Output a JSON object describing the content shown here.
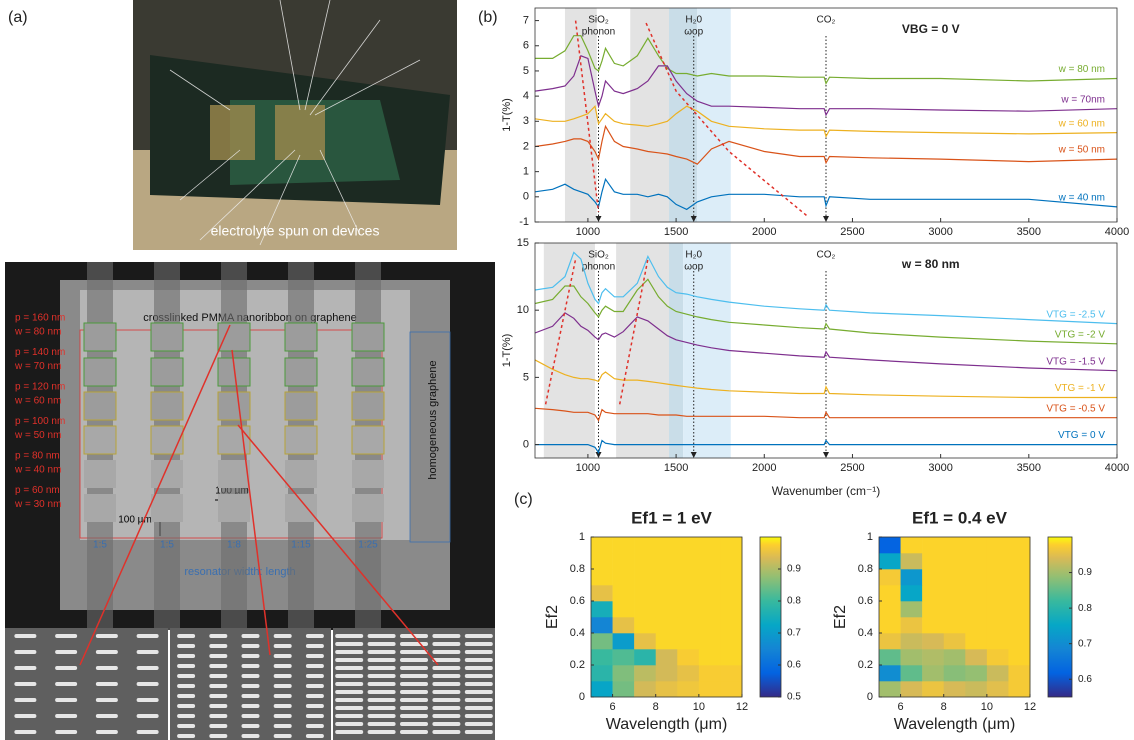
{
  "panels": {
    "a": "(a)",
    "b": "(b)",
    "c": "(c)"
  },
  "photo": {
    "caption": "electrolyte spun on devices"
  },
  "micrograph": {
    "title": "crosslinked PMMA nanoribbon on graphene",
    "labels": [
      [
        "p = 160 nm",
        "w = 80 nm"
      ],
      [
        "p = 140 nm",
        "w = 70 nm"
      ],
      [
        "p = 120 nm",
        "w = 60 nm"
      ],
      [
        "p = 100 nm",
        "w = 50 nm"
      ],
      [
        "p = 80 nm",
        "w = 40 nm"
      ],
      [
        "p = 60 nm",
        "w = 30 nm"
      ]
    ],
    "ratios": [
      "1:5",
      "1:5",
      "1:8",
      "1:15",
      "1:25"
    ],
    "ratio_caption": "resonator width: length",
    "side_label": "homogeneous graphene",
    "scale_h": "100 µm",
    "scale_v": "100 µm"
  },
  "chart_data": [
    {
      "type": "line",
      "ylabel": "1-T(%)",
      "note": "VBG = 0 V",
      "x": [
        700,
        800,
        870,
        920,
        960,
        1000,
        1040,
        1060,
        1080,
        1100,
        1150,
        1200,
        1280,
        1340,
        1400,
        1450,
        1500,
        1560,
        1620,
        1700,
        1800,
        2000,
        2200,
        2340,
        2350,
        2370,
        2600,
        3000,
        3500,
        4000
      ],
      "xlim": [
        700,
        4000
      ],
      "xticks": [
        1000,
        1500,
        2000,
        2500,
        3000,
        3500,
        4000
      ],
      "ylim": [
        -1,
        7.5
      ],
      "yticks": [
        -1,
        0,
        1,
        2,
        3,
        4,
        5,
        6,
        7
      ],
      "bands": [
        {
          "from": 870,
          "to": 1050,
          "color": "#e3e3e3"
        },
        {
          "from": 1240,
          "to": 1460,
          "color": "#e3e3e3"
        },
        {
          "from": 1460,
          "to": 1620,
          "color": "#c9dde8"
        },
        {
          "from": 1620,
          "to": 1810,
          "color": "#dcedf8"
        }
      ],
      "annotations": [
        {
          "x": 1060,
          "text": [
            "SiO₂",
            "phonon"
          ]
        },
        {
          "x": 1600,
          "text": [
            "H₂0",
            "ωop"
          ]
        },
        {
          "x": 2350,
          "text": [
            "CO₂"
          ]
        }
      ],
      "trends": [
        {
          "x": [
            930,
            1060
          ],
          "y": [
            7.0,
            -0.6
          ]
        },
        {
          "x": [
            1330,
            1500,
            1800,
            2250
          ],
          "y": [
            6.9,
            4.2,
            1.8,
            -0.8
          ]
        }
      ],
      "series": [
        {
          "name": "w = 80 nm",
          "color": "#77ac30",
          "values": [
            5.5,
            5.5,
            5.8,
            6.4,
            6.4,
            5.8,
            5.1,
            5.0,
            5.4,
            5.9,
            5.3,
            5.2,
            5.6,
            6.3,
            5.6,
            5.1,
            4.9,
            4.9,
            4.8,
            4.9,
            4.8,
            4.8,
            4.75,
            4.75,
            4.5,
            4.75,
            4.7,
            4.7,
            4.6,
            4.7
          ]
        },
        {
          "name": "w = 70nm",
          "color": "#7e2f8e",
          "values": [
            4.2,
            4.3,
            4.4,
            4.8,
            5.6,
            5.5,
            4.2,
            3.6,
            4.0,
            4.6,
            4.2,
            4.1,
            4.3,
            4.6,
            5.2,
            5.2,
            4.6,
            4.1,
            3.8,
            3.6,
            3.6,
            3.55,
            3.5,
            3.5,
            3.25,
            3.5,
            3.5,
            3.45,
            3.4,
            3.5
          ]
        },
        {
          "name": "w = 60 nm",
          "color": "#edb120",
          "values": [
            3.1,
            3.0,
            3.0,
            3.1,
            3.2,
            3.3,
            3.6,
            2.9,
            3.1,
            3.3,
            3.0,
            2.9,
            2.85,
            2.8,
            2.9,
            3.0,
            3.3,
            3.6,
            3.4,
            3.0,
            2.8,
            2.7,
            2.65,
            2.65,
            2.4,
            2.65,
            2.6,
            2.55,
            2.5,
            2.55
          ]
        },
        {
          "name": "w = 50 nm",
          "color": "#d95319",
          "values": [
            2.0,
            2.1,
            2.2,
            2.3,
            2.3,
            2.2,
            1.8,
            1.5,
            2.2,
            2.8,
            2.2,
            2.0,
            1.9,
            1.8,
            1.75,
            1.7,
            1.6,
            1.5,
            1.3,
            1.9,
            2.2,
            1.8,
            1.6,
            1.6,
            1.35,
            1.6,
            1.55,
            1.5,
            1.4,
            1.5
          ]
        },
        {
          "name": "w = 40 nm",
          "color": "#0072bd",
          "values": [
            0.2,
            0.3,
            0.5,
            0.3,
            0.2,
            0.1,
            -0.2,
            -0.4,
            0.2,
            0.7,
            0.2,
            0.1,
            0.1,
            0.0,
            0.1,
            0.0,
            -0.3,
            -0.5,
            -0.2,
            0.0,
            0.1,
            0.1,
            0.0,
            0.0,
            -0.35,
            0.0,
            -0.1,
            -0.1,
            -0.1,
            -0.4
          ]
        }
      ]
    },
    {
      "type": "line",
      "ylabel": "1-T(%)",
      "xlabel": "Wavenumber (cm⁻¹)",
      "note": "w = 80 nm",
      "x": [
        700,
        800,
        870,
        920,
        960,
        1000,
        1040,
        1060,
        1080,
        1100,
        1150,
        1200,
        1280,
        1340,
        1400,
        1450,
        1500,
        1560,
        1620,
        1700,
        1800,
        2000,
        2200,
        2340,
        2350,
        2370,
        2600,
        3000,
        3500,
        4000
      ],
      "xlim": [
        700,
        4000
      ],
      "xticks": [
        1000,
        1500,
        2000,
        2500,
        3000,
        3500,
        4000
      ],
      "ylim": [
        -1,
        15
      ],
      "yticks": [
        0,
        5,
        10,
        15
      ],
      "bands": [
        {
          "from": 750,
          "to": 1040,
          "color": "#e3e3e3"
        },
        {
          "from": 1160,
          "to": 1460,
          "color": "#e3e3e3"
        },
        {
          "from": 1460,
          "to": 1540,
          "color": "#c9dde8"
        },
        {
          "from": 1540,
          "to": 1810,
          "color": "#dcedf8"
        }
      ],
      "annotations": [
        {
          "x": 1060,
          "text": [
            "SiO₂",
            "phonon"
          ]
        },
        {
          "x": 1600,
          "text": [
            "H₂0",
            "ωop"
          ]
        },
        {
          "x": 2350,
          "text": [
            "CO₂"
          ]
        }
      ],
      "trends": [
        {
          "x": [
            760,
            930
          ],
          "y": [
            3.0,
            13.8
          ]
        },
        {
          "x": [
            1180,
            1340
          ],
          "y": [
            3.0,
            13.8
          ]
        }
      ],
      "series": [
        {
          "name": "VTG = -2.5 V",
          "color": "#4dbeee",
          "values": [
            11.5,
            11.7,
            12.5,
            14.3,
            13.8,
            12.0,
            10.8,
            10.5,
            11.3,
            11.6,
            11.0,
            11.0,
            12.0,
            14.0,
            12.5,
            11.7,
            11.3,
            11.2,
            11.0,
            10.8,
            10.6,
            10.3,
            10.1,
            10.0,
            10.4,
            10.0,
            9.8,
            9.6,
            9.3,
            9.0
          ]
        },
        {
          "name": "VTG = -2 V",
          "color": "#77ac30",
          "values": [
            10.5,
            10.8,
            11.8,
            11.8,
            11.0,
            10.5,
            9.8,
            9.5,
            10.0,
            10.3,
            9.9,
            9.9,
            11.5,
            12.3,
            11.0,
            10.3,
            9.9,
            9.7,
            9.5,
            9.3,
            9.1,
            8.9,
            8.7,
            8.6,
            9.0,
            8.6,
            8.3,
            8.0,
            7.7,
            7.5
          ]
        },
        {
          "name": "VTG = -1.5 V",
          "color": "#7e2f8e",
          "values": [
            8.3,
            8.8,
            9.8,
            9.4,
            8.8,
            8.5,
            8.0,
            7.8,
            8.2,
            8.3,
            8.0,
            8.4,
            9.5,
            9.2,
            8.6,
            8.1,
            7.8,
            7.6,
            7.4,
            7.2,
            7.0,
            6.8,
            6.6,
            6.5,
            6.9,
            6.5,
            6.3,
            6.0,
            5.7,
            5.5
          ]
        },
        {
          "name": "VTG = -1 V",
          "color": "#edb120",
          "values": [
            6.3,
            5.6,
            5.2,
            5.0,
            4.9,
            4.9,
            4.8,
            4.7,
            5.2,
            5.4,
            4.9,
            4.8,
            4.8,
            4.7,
            4.6,
            4.5,
            4.4,
            4.3,
            4.2,
            4.1,
            4.0,
            3.9,
            3.8,
            3.8,
            4.3,
            3.8,
            3.7,
            3.6,
            3.5,
            3.5
          ]
        },
        {
          "name": "VTG = -0.5 V",
          "color": "#d95319",
          "values": [
            2.7,
            2.6,
            2.5,
            2.4,
            2.4,
            2.4,
            2.2,
            1.8,
            2.6,
            2.4,
            2.3,
            2.3,
            2.3,
            2.3,
            2.2,
            2.2,
            2.2,
            2.1,
            2.1,
            2.1,
            2.1,
            2.1,
            2.0,
            2.0,
            2.4,
            2.0,
            2.0,
            2.0,
            2.0,
            2.0
          ]
        },
        {
          "name": "VTG = 0 V",
          "color": "#0072bd",
          "values": [
            0,
            0,
            0,
            0,
            0,
            0,
            -0.2,
            -0.6,
            0.3,
            0.1,
            0,
            0,
            0,
            0,
            0,
            0,
            0,
            0,
            0,
            0,
            0,
            0,
            0,
            0,
            0.3,
            0,
            0,
            0,
            0,
            0
          ]
        }
      ]
    },
    {
      "type": "heatmap",
      "title": "Ef1 = 1 eV",
      "xlabel": "Wavelength (μm)",
      "ylabel": "Ef2",
      "colormap": "parula",
      "x": [
        5,
        6,
        7,
        8,
        9,
        10,
        11,
        12
      ],
      "y": [
        0,
        0.1,
        0.2,
        0.3,
        0.4,
        0.5,
        0.6,
        0.7,
        0.8,
        0.9,
        1
      ],
      "xlim": [
        5,
        12
      ],
      "xticks": [
        6,
        8,
        10,
        12
      ],
      "ylim": [
        0,
        1
      ],
      "yticks": [
        0,
        0.2,
        0.4,
        0.6,
        0.8,
        1
      ],
      "zlim": [
        0.5,
        1
      ],
      "zticks": [
        0.5,
        0.6,
        0.7,
        0.8,
        0.9
      ],
      "z": [
        [
          0.72,
          0.85,
          0.93,
          0.95,
          0.96,
          0.97,
          0.97
        ],
        [
          0.78,
          0.86,
          0.91,
          0.93,
          0.95,
          0.97,
          0.97
        ],
        [
          0.8,
          0.82,
          0.78,
          0.93,
          0.97,
          0.98,
          0.98
        ],
        [
          0.85,
          0.7,
          0.95,
          0.98,
          0.98,
          0.98,
          0.98
        ],
        [
          0.65,
          0.95,
          0.98,
          0.98,
          0.98,
          0.98,
          0.98
        ],
        [
          0.75,
          0.98,
          0.98,
          0.98,
          0.98,
          0.98,
          0.98
        ],
        [
          0.95,
          0.98,
          0.98,
          0.98,
          0.98,
          0.98,
          0.98
        ],
        [
          0.98,
          0.98,
          0.98,
          0.98,
          0.98,
          0.98,
          0.98
        ],
        [
          0.98,
          0.98,
          0.98,
          0.98,
          0.98,
          0.98,
          0.98
        ],
        [
          0.98,
          0.98,
          0.98,
          0.98,
          0.98,
          0.98,
          0.98
        ]
      ]
    },
    {
      "type": "heatmap",
      "title": "Ef1 = 0.4 eV",
      "xlabel": "Wavelength (μm)",
      "ylabel": "Ef2",
      "colormap": "parula",
      "x": [
        5,
        6,
        7,
        8,
        9,
        10,
        11,
        12
      ],
      "y": [
        0,
        0.1,
        0.2,
        0.3,
        0.4,
        0.5,
        0.6,
        0.7,
        0.8,
        0.9,
        1
      ],
      "xlim": [
        5,
        12
      ],
      "xticks": [
        6,
        8,
        10,
        12
      ],
      "ylim": [
        0,
        1
      ],
      "yticks": [
        0,
        0.2,
        0.4,
        0.6,
        0.8,
        1
      ],
      "zlim": [
        0.55,
        1
      ],
      "zticks": [
        0.6,
        0.7,
        0.8,
        0.9
      ],
      "z": [
        [
          0.9,
          0.94,
          0.96,
          0.94,
          0.93,
          0.95,
          0.97
        ],
        [
          0.7,
          0.85,
          0.9,
          0.88,
          0.89,
          0.93,
          0.97
        ],
        [
          0.85,
          0.9,
          0.91,
          0.9,
          0.94,
          0.97,
          0.98
        ],
        [
          0.96,
          0.93,
          0.94,
          0.96,
          0.98,
          0.98,
          0.98
        ],
        [
          0.98,
          0.96,
          0.98,
          0.98,
          0.98,
          0.98,
          0.98
        ],
        [
          0.98,
          0.9,
          0.98,
          0.98,
          0.98,
          0.98,
          0.98
        ],
        [
          0.98,
          0.75,
          0.98,
          0.98,
          0.98,
          0.98,
          0.98
        ],
        [
          0.97,
          0.72,
          0.98,
          0.98,
          0.98,
          0.98,
          0.98
        ],
        [
          0.75,
          0.93,
          0.98,
          0.98,
          0.98,
          0.98,
          0.98
        ],
        [
          0.62,
          0.98,
          0.98,
          0.98,
          0.98,
          0.98,
          0.98
        ]
      ]
    }
  ]
}
